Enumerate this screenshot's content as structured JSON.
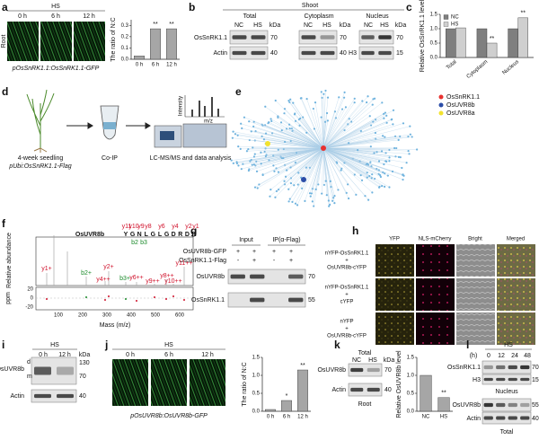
{
  "panels": {
    "a": {
      "label": "a",
      "condition": "HS",
      "times": [
        "0 h",
        "6 h",
        "12 h"
      ],
      "tissue": "Root",
      "construct": "pOsSnRK1.1:OsSnRK1.1-GFP"
    },
    "b": {
      "label": "b",
      "tissue": "Shoot",
      "fractions": [
        "Total",
        "Cytoplasm",
        "Nucleus"
      ],
      "lanes": [
        "NC",
        "HS"
      ],
      "unit": "kDa",
      "proteins": [
        "OsSnRK1.1",
        "Actin",
        "H3"
      ],
      "markers": [
        70,
        40,
        15
      ]
    },
    "c": {
      "label": "c"
    },
    "d": {
      "label": "d",
      "steps": [
        "4-week seedling",
        "Co-IP",
        "LC-MS/MS and data analysis"
      ],
      "construct": "pUbi:OsSnRK1.1-Flag",
      "axis_labels": [
        "Intensity",
        "m/z"
      ]
    },
    "e": {
      "label": "e",
      "legend": [
        {
          "name": "OsSnRK1.1",
          "color": "#e8312f"
        },
        {
          "name": "OsUVR8b",
          "color": "#2b4da8"
        },
        {
          "name": "OsUVR8a",
          "color": "#f2e22e"
        }
      ]
    },
    "f": {
      "label": "f",
      "protein": "OsUVR8b",
      "sequence": [
        "Y",
        "G",
        "N",
        "L",
        "G",
        "L",
        "G",
        "D",
        "R",
        "D",
        "R"
      ],
      "y_ions": [
        "y11",
        "y10",
        "y9",
        "y8",
        "y6",
        "y4",
        "y2",
        "y1"
      ],
      "b_ions": [
        "b2",
        "b3"
      ],
      "peaks": [
        "y1+",
        "b2+",
        "y4++",
        "y6++",
        "y2+",
        "b3+",
        "y8++",
        "y9++",
        "y10++",
        "y11++"
      ],
      "ylabel": "Relative abundance",
      "error_label": "ppm",
      "error_ticks": [
        20,
        0,
        -20
      ],
      "xticks": [
        100,
        200,
        300,
        400,
        500,
        600
      ],
      "xlabel": "Mass (m/z)"
    },
    "g": {
      "label": "g",
      "groups": [
        "Input",
        "IP(α-Flag)"
      ],
      "rows": [
        {
          "name": "OsUVR8b-GFP",
          "signs": [
            "+",
            "+",
            "+",
            "+"
          ]
        },
        {
          "name": "OsSnRK1.1-Flag",
          "signs": [
            "-",
            "+",
            "-",
            "+"
          ]
        }
      ],
      "proteins": [
        "OsUVR8b",
        "OsSnRK1.1"
      ],
      "markers": [
        70,
        55
      ]
    },
    "h": {
      "label": "h",
      "channels": [
        "YFP",
        "NLS-mCherry",
        "Bright",
        "Merged"
      ],
      "rows": [
        [
          "nYFP-OsSnRK1.1",
          "+",
          "OsUVR8b-cYFP"
        ],
        [
          "nYFP-OsSnRK1.1",
          "+",
          "cYFP"
        ],
        [
          "nYFP",
          "+",
          "OsUVR8b-cYFP"
        ]
      ]
    },
    "i": {
      "label": "i",
      "condition": "HS",
      "times": [
        "0 h",
        "12 h"
      ],
      "unit": "kDa",
      "protein": "OsUVR8b",
      "forms": [
        "d",
        "m"
      ],
      "loading": "Actin",
      "markers": [
        130,
        70,
        40
      ]
    },
    "j": {
      "label": "j",
      "condition": "HS",
      "times": [
        "0 h",
        "6 h",
        "12 h"
      ],
      "construct": "pOsUVR8b:OsUVR8b-GFP"
    },
    "k": {
      "label": "k",
      "fraction": "Total",
      "lanes": [
        "NC",
        "HS"
      ],
      "unit": "kDa",
      "proteins": [
        "OsUVR8b",
        "Actin"
      ],
      "markers": [
        70,
        40
      ],
      "tissue": "Root"
    },
    "l": {
      "label": "l",
      "condition": "HS",
      "unit": "(h)",
      "times": [
        0,
        12,
        24,
        48
      ],
      "blots": [
        {
          "proteins": [
            "OsSnRK1.1",
            "H3"
          ],
          "markers": [
            70,
            15
          ],
          "fraction": "Nucleus"
        },
        {
          "proteins": [
            "OsUVR8b",
            "Actin"
          ],
          "markers": [
            55,
            40
          ],
          "fraction": "Total"
        }
      ]
    }
  },
  "chart_data": [
    {
      "type": "bar",
      "ylabel": "The ratio of N:C",
      "categories": [
        "0 h",
        "6 h",
        "12 h"
      ],
      "values": [
        0.03,
        0.27,
        0.27
      ],
      "color": "#a6a6a6",
      "significance": [
        null,
        "**",
        "**"
      ],
      "ylim": [
        0,
        0.35
      ],
      "yticks": [
        {
          "value": 0,
          "label": "0.0"
        },
        0.1,
        0.2,
        0.3
      ]
    },
    {
      "type": "bar",
      "ylabel": "Relative OsSnRK1.1 level",
      "categories": [
        "Total",
        "Cytoplasm",
        "Nucleus"
      ],
      "series": [
        {
          "name": "NC",
          "color": "#7f7f7f",
          "values": [
            1,
            1,
            1
          ]
        },
        {
          "name": "HS",
          "color": "#cfcfcf",
          "values": [
            1.03,
            0.5,
            1.38
          ],
          "significance": [
            null,
            "**",
            "**"
          ]
        }
      ],
      "ylim": [
        0,
        1.5
      ],
      "yticks": [
        {
          "value": 0,
          "label": "0.0"
        },
        0.5,
        {
          "value": 1,
          "label": "1.0"
        },
        1.5
      ],
      "legend": "upper left"
    },
    {
      "type": "bar",
      "ylabel": "The ratio of N:C",
      "categories": [
        "0 h",
        "6 h",
        "12 h"
      ],
      "values": [
        0.05,
        0.3,
        1.15
      ],
      "color": "#a6a6a6",
      "significance": [
        null,
        "*",
        "**"
      ],
      "ylim": [
        0,
        1.5
      ],
      "yticks": [
        {
          "value": 0,
          "label": "0.0"
        },
        0.5,
        {
          "value": 1,
          "label": "1.0"
        },
        1.5
      ]
    },
    {
      "type": "bar",
      "ylabel": "Relative OsUVR8b level",
      "categories": [
        "NC",
        "HS"
      ],
      "values": [
        1,
        0.38
      ],
      "color": "#a6a6a6",
      "significance": [
        null,
        "**"
      ],
      "ylim": [
        0,
        1.5
      ],
      "yticks": [
        {
          "value": 0,
          "label": "0.0"
        },
        0.5,
        {
          "value": 1,
          "label": "1.0"
        },
        1.5
      ]
    }
  ]
}
